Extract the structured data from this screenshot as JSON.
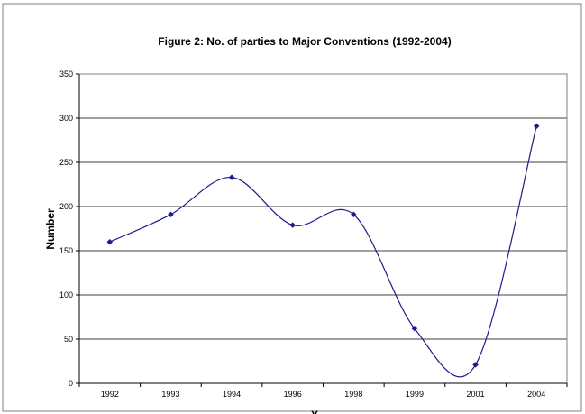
{
  "chart_data": {
    "type": "line",
    "title": "Figure 2: No. of parties to Major Conventions (1992-2004)",
    "xlabel": "Y",
    "ylabel": "Number",
    "categories": [
      "1992",
      "1993",
      "1994",
      "1996",
      "1998",
      "1999",
      "2001",
      "2004"
    ],
    "series": [
      {
        "values": [
          160,
          191,
          233,
          179,
          191,
          62,
          21,
          291
        ],
        "color": "#1c1c8c"
      }
    ],
    "ylim": [
      0,
      350
    ],
    "yticks": [
      0,
      50,
      100,
      150,
      200,
      250,
      300,
      350
    ],
    "grid": true,
    "smooth": true,
    "plot_background": "#ffffff",
    "grid_color": "#000000"
  }
}
